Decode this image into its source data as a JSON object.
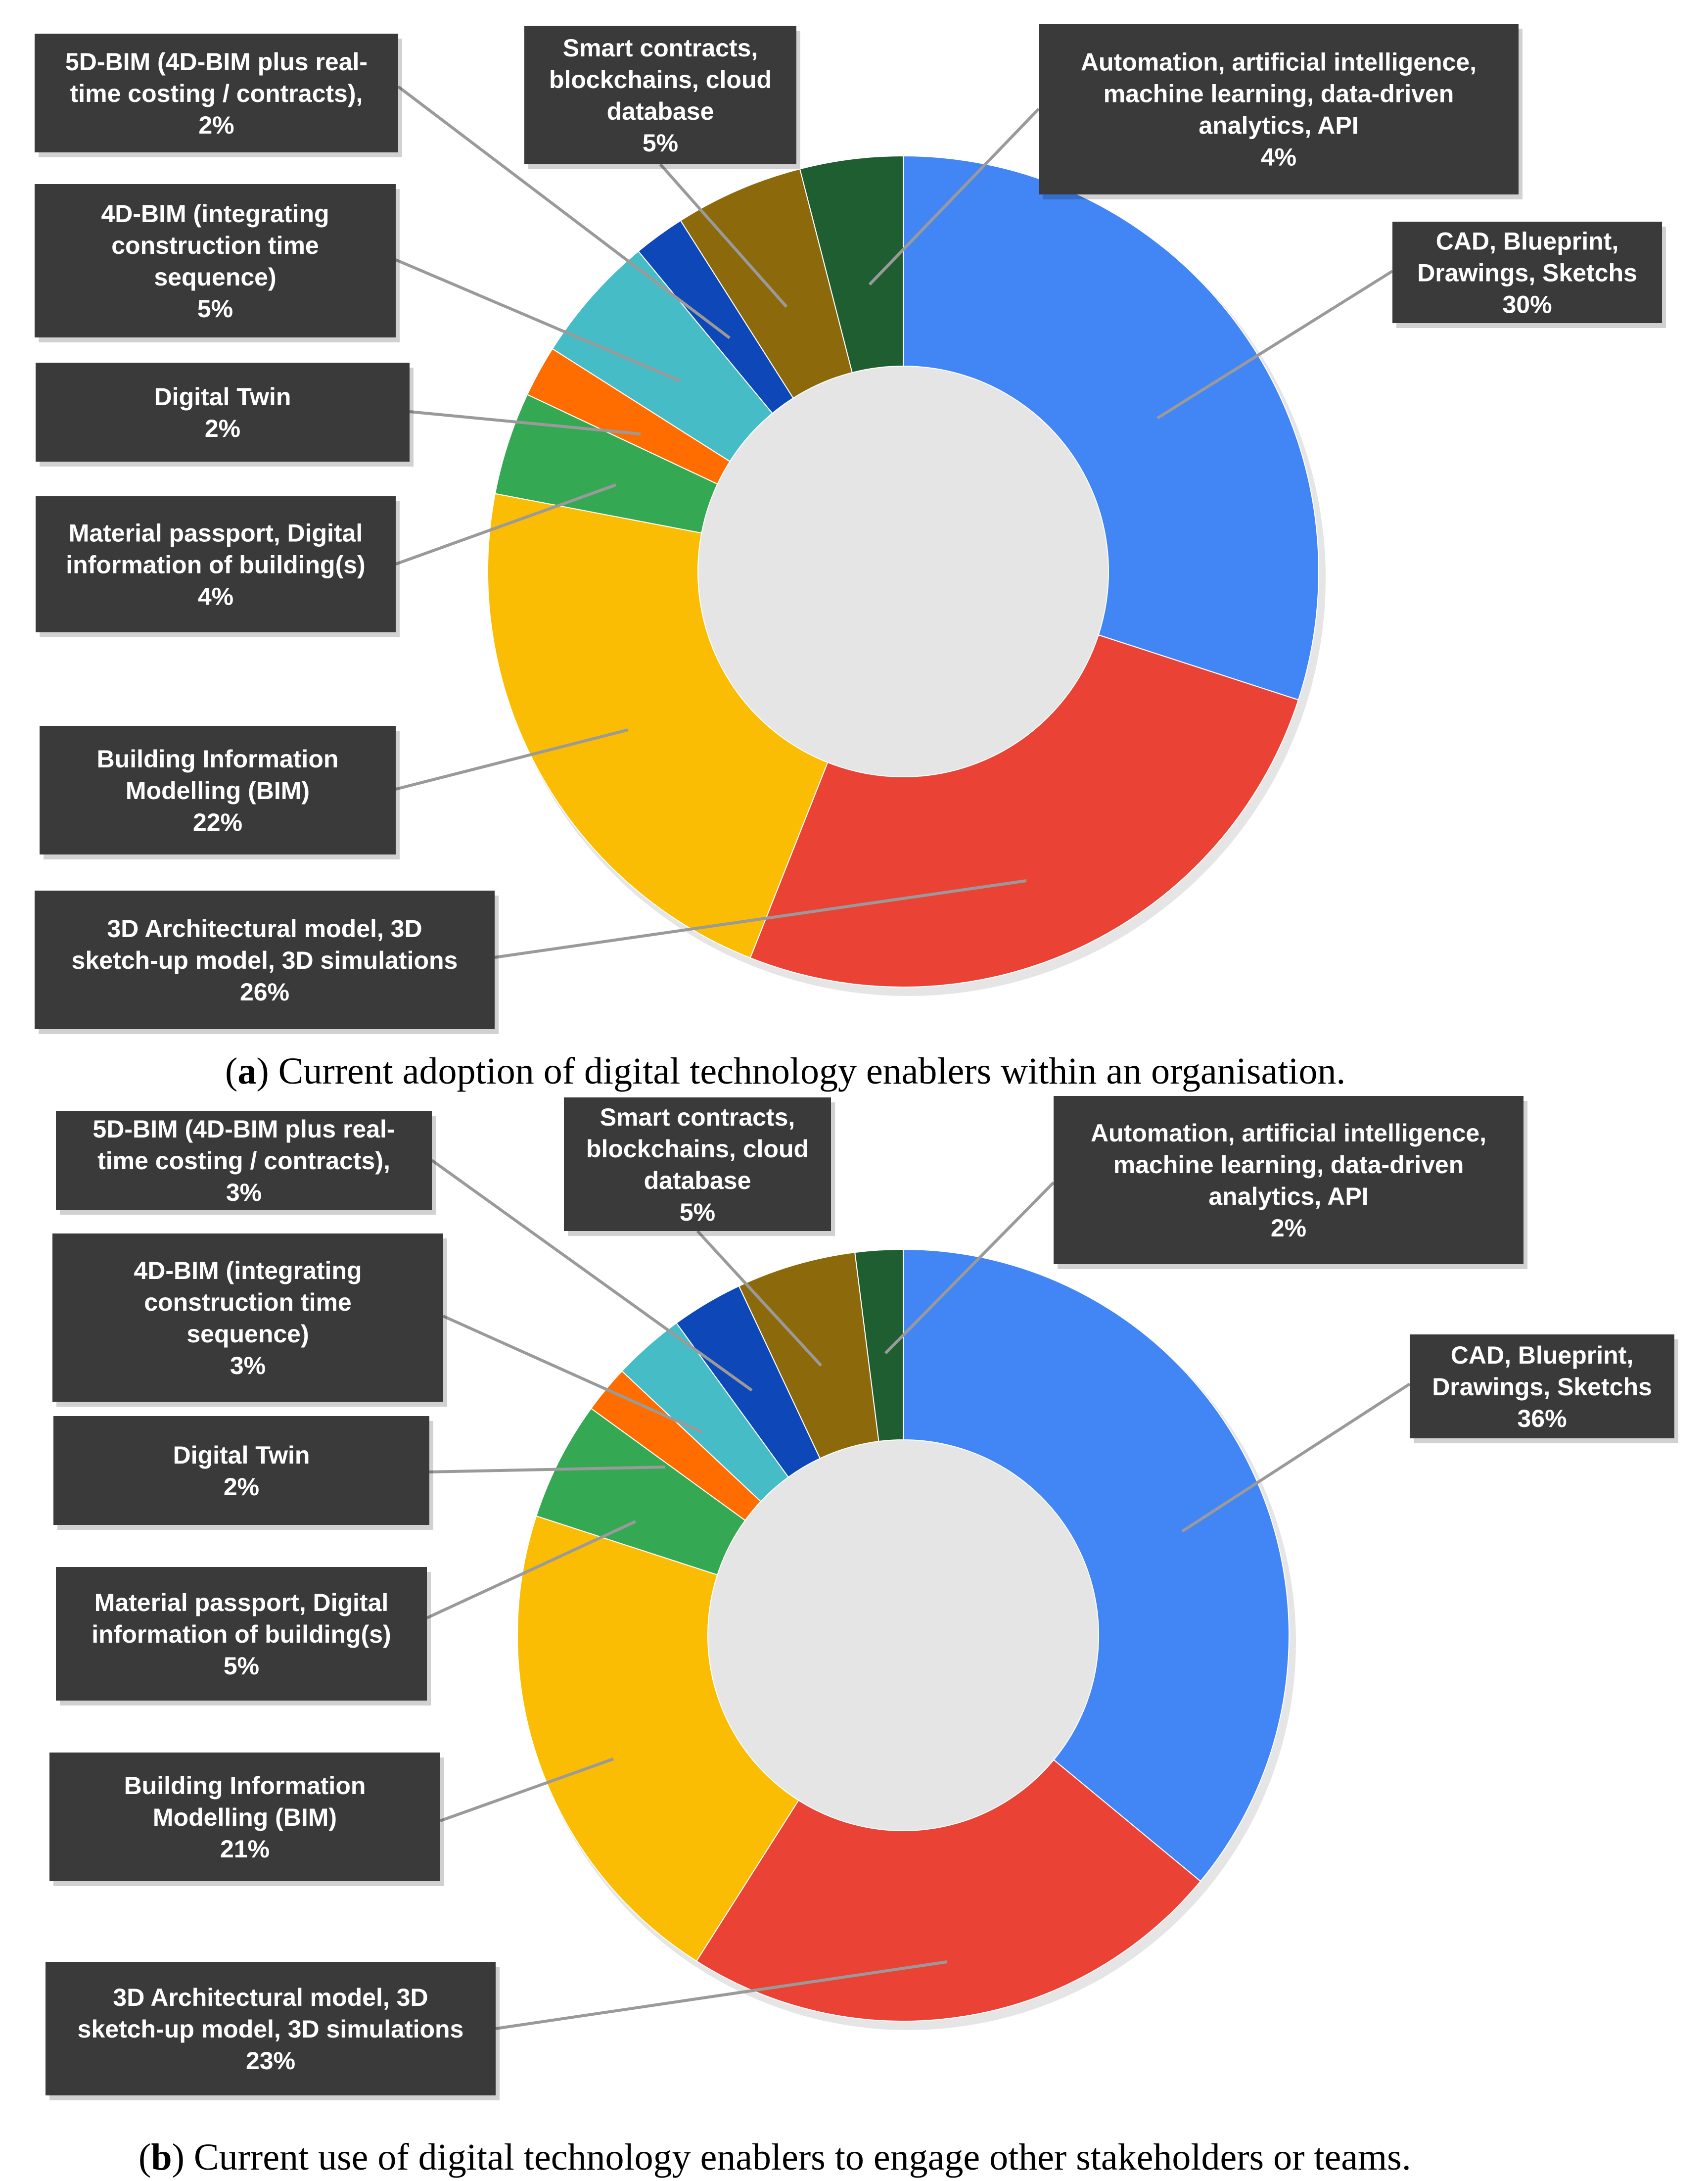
{
  "colors": {
    "cad": "#4285F4",
    "arch3d": "#EA4335",
    "bim": "#FBBC04",
    "material": "#34A853",
    "twin": "#FF6D01",
    "bim4d": "#46BDC6",
    "bim5d": "#0D47B8",
    "smart": "#8C6A0B",
    "automation": "#1E5E31",
    "label_bg": "#3a3a3a",
    "leader": "#9a9a9a"
  },
  "chart_data": [
    {
      "type": "pie",
      "subtype": "donut",
      "caption_letter": "a",
      "caption_text": ") Current adoption of digital technology enablers within an organisation.",
      "slices": [
        {
          "key": "cad",
          "label_lines": [
            "CAD, Blueprint,",
            "Drawings, Sketchs"
          ],
          "value_label": "30%",
          "value": 30
        },
        {
          "key": "arch3d",
          "label_lines": [
            "3D Architectural model, 3D",
            "sketch-up model, 3D simulations"
          ],
          "value_label": "26%",
          "value": 26
        },
        {
          "key": "bim",
          "label_lines": [
            "Building Information",
            "Modelling (BIM)"
          ],
          "value_label": "22%",
          "value": 22
        },
        {
          "key": "material",
          "label_lines": [
            "Material passport, Digital",
            "information of building(s)"
          ],
          "value_label": "4%",
          "value": 4
        },
        {
          "key": "twin",
          "label_lines": [
            "Digital Twin"
          ],
          "value_label": "2%",
          "value": 2
        },
        {
          "key": "bim4d",
          "label_lines": [
            "4D-BIM (integrating",
            "construction time",
            "sequence)"
          ],
          "value_label": "5%",
          "value": 5
        },
        {
          "key": "bim5d",
          "label_lines": [
            "5D-BIM (4D-BIM plus real-",
            "time costing / contracts),"
          ],
          "value_label": "2%",
          "value": 2
        },
        {
          "key": "smart",
          "label_lines": [
            "Smart contracts,",
            "blockchains, cloud",
            "database"
          ],
          "value_label": "5%",
          "value": 5
        },
        {
          "key": "automation",
          "label_lines": [
            "Automation, artificial intelligence,",
            "machine learning, data-driven",
            "analytics, API"
          ],
          "value_label": "4%",
          "value": 4
        }
      ]
    },
    {
      "type": "pie",
      "subtype": "donut",
      "caption_letter": "b",
      "caption_text": ") Current use of digital technology enablers to engage other stakeholders or teams.",
      "slices": [
        {
          "key": "cad",
          "label_lines": [
            "CAD, Blueprint,",
            "Drawings, Sketchs"
          ],
          "value_label": "36%",
          "value": 36
        },
        {
          "key": "arch3d",
          "label_lines": [
            "3D Architectural model, 3D",
            "sketch-up model, 3D simulations"
          ],
          "value_label": "23%",
          "value": 23
        },
        {
          "key": "bim",
          "label_lines": [
            "Building Information",
            "Modelling (BIM)"
          ],
          "value_label": "21%",
          "value": 21
        },
        {
          "key": "material",
          "label_lines": [
            "Material passport, Digital",
            "information of building(s)"
          ],
          "value_label": "5%",
          "value": 5
        },
        {
          "key": "twin",
          "label_lines": [
            "Digital Twin"
          ],
          "value_label": "2%",
          "value": 2
        },
        {
          "key": "bim4d",
          "label_lines": [
            "4D-BIM (integrating",
            "construction time",
            "sequence)"
          ],
          "value_label": "3%",
          "value": 3
        },
        {
          "key": "bim5d",
          "label_lines": [
            "5D-BIM (4D-BIM plus real-",
            "time costing / contracts),"
          ],
          "value_label": "3%",
          "value": 3
        },
        {
          "key": "smart",
          "label_lines": [
            "Smart contracts,",
            "blockchains, cloud",
            "database"
          ],
          "value_label": "5%",
          "value": 5
        },
        {
          "key": "automation",
          "label_lines": [
            "Automation, artificial intelligence,",
            "machine learning, data-driven",
            "analytics, API"
          ],
          "value_label": "2%",
          "value": 2
        }
      ]
    }
  ]
}
